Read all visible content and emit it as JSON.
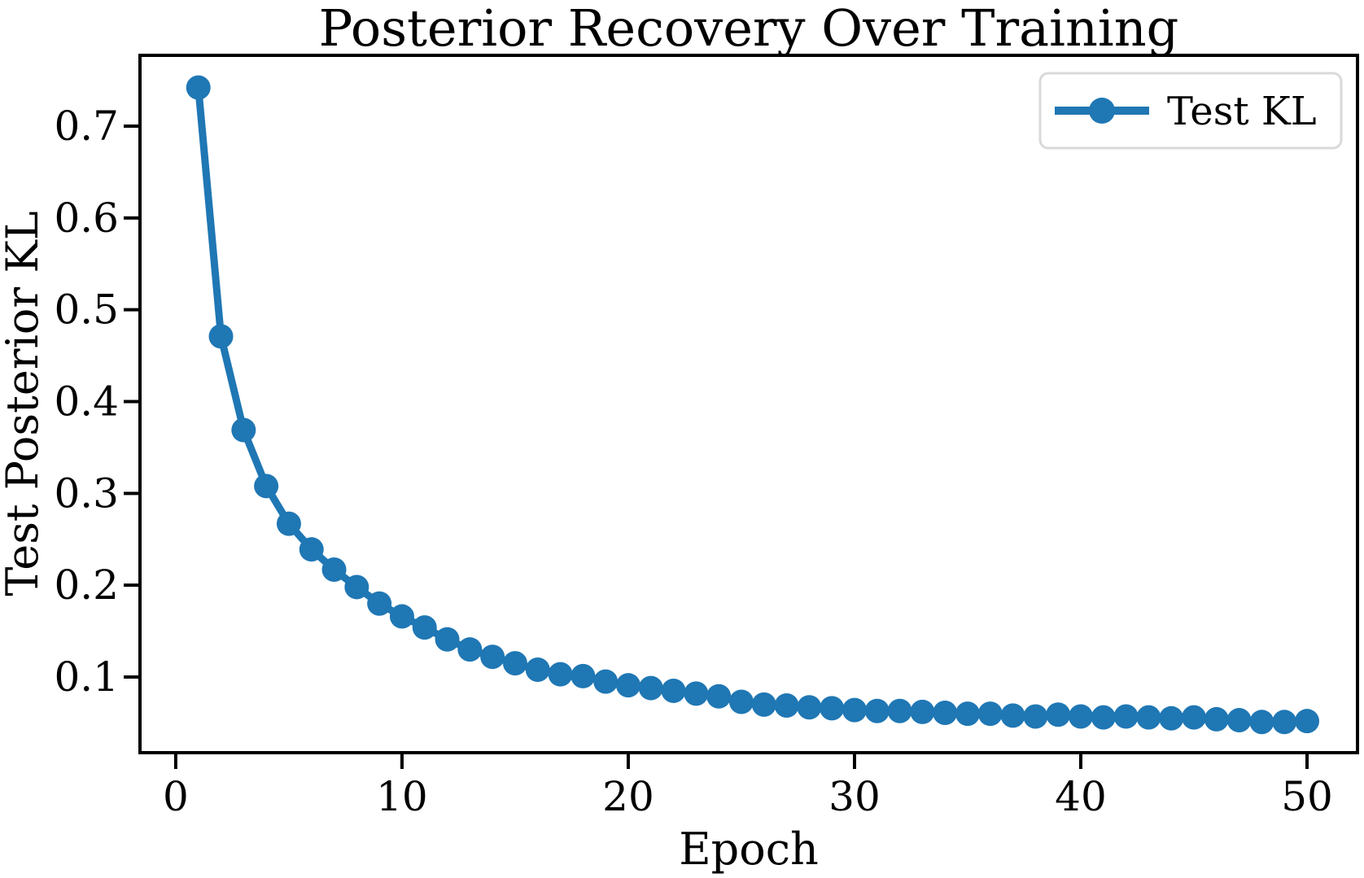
{
  "figure": {
    "background": "#ffffff"
  },
  "chart_data": {
    "type": "line",
    "title": "Posterior Recovery Over Training",
    "xlabel": "Epoch",
    "ylabel": "Test Posterior KL",
    "grid": false,
    "legend": {
      "position": "upper right",
      "entries": [
        {
          "label": "Test KL",
          "color": "#1f77b4",
          "marker": "circle",
          "line": "solid"
        }
      ]
    },
    "xlim": [
      -1.58,
      52.23
    ],
    "ylim": [
      0.0176,
      0.7771
    ],
    "xticks": [
      0,
      10,
      20,
      30,
      40,
      50
    ],
    "yticks": [
      0.1,
      0.2,
      0.3,
      0.4,
      0.5,
      0.6,
      0.7
    ],
    "colors": {
      "series": "#1f77b4",
      "axis": "#000000",
      "legend_border": "#d9d9d9"
    },
    "series": [
      {
        "name": "Test KL",
        "color": "#1f77b4",
        "x": [
          1,
          2,
          3,
          4,
          5,
          6,
          7,
          8,
          9,
          10,
          11,
          12,
          13,
          14,
          15,
          16,
          17,
          18,
          19,
          20,
          21,
          22,
          23,
          24,
          25,
          26,
          27,
          28,
          29,
          30,
          31,
          32,
          33,
          34,
          35,
          36,
          37,
          38,
          39,
          40,
          41,
          42,
          43,
          44,
          45,
          46,
          47,
          48,
          49,
          50
        ],
        "y": [
          0.742,
          0.471,
          0.369,
          0.308,
          0.267,
          0.239,
          0.217,
          0.198,
          0.18,
          0.166,
          0.154,
          0.141,
          0.13,
          0.122,
          0.115,
          0.108,
          0.103,
          0.101,
          0.095,
          0.091,
          0.088,
          0.085,
          0.082,
          0.079,
          0.073,
          0.07,
          0.069,
          0.067,
          0.066,
          0.064,
          0.063,
          0.063,
          0.062,
          0.061,
          0.06,
          0.06,
          0.058,
          0.057,
          0.059,
          0.057,
          0.056,
          0.057,
          0.056,
          0.055,
          0.056,
          0.054,
          0.053,
          0.051,
          0.051,
          0.052
        ]
      }
    ]
  }
}
